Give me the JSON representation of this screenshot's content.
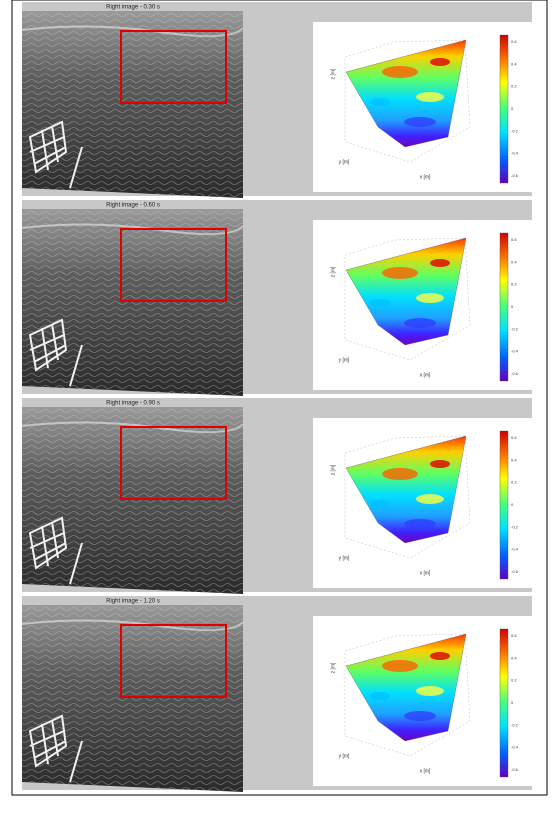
{
  "figure": {
    "panels": [
      {
        "title": "Right image - 0.30 s"
      },
      {
        "title": "Right image - 0.60 s"
      },
      {
        "title": "Right image - 0.90 s"
      },
      {
        "title": "Right image - 1.20 s"
      }
    ],
    "axis_labels": {
      "x": "x [m]",
      "y": "y [m]",
      "z": "z [m]"
    },
    "colorbar_ticks": [
      "0.6",
      "0.4",
      "0.2",
      "0",
      "-0.2",
      "-0.4",
      "-0.6"
    ]
  }
}
